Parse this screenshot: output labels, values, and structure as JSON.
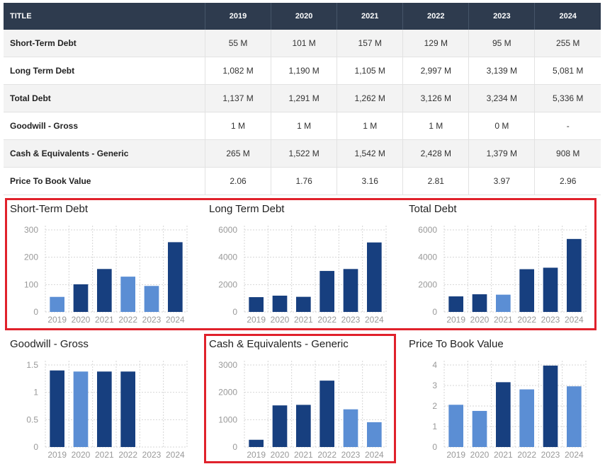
{
  "table": {
    "header": [
      "TITLE",
      "2019",
      "2020",
      "2021",
      "2022",
      "2023",
      "2024"
    ],
    "rows": [
      {
        "label": "Short-Term Debt",
        "values": [
          "55 M",
          "101 M",
          "157 M",
          "129 M",
          "95 M",
          "255 M"
        ]
      },
      {
        "label": "Long Term Debt",
        "values": [
          "1,082 M",
          "1,190 M",
          "1,105 M",
          "2,997 M",
          "3,139 M",
          "5,081 M"
        ]
      },
      {
        "label": "Total Debt",
        "values": [
          "1,137 M",
          "1,291 M",
          "1,262 M",
          "3,126 M",
          "3,234 M",
          "5,336 M"
        ]
      },
      {
        "label": "Goodwill - Gross",
        "values": [
          "1 M",
          "1 M",
          "1 M",
          "1 M",
          "0 M",
          "-"
        ]
      },
      {
        "label": "Cash & Equivalents - Generic",
        "values": [
          "265 M",
          "1,522 M",
          "1,542 M",
          "2,428 M",
          "1,379 M",
          "908 M"
        ]
      },
      {
        "label": "Price To Book Value",
        "values": [
          "2.06",
          "1.76",
          "3.16",
          "2.81",
          "3.97",
          "2.96"
        ]
      }
    ]
  },
  "colors": {
    "dark_bar": "#173f7f",
    "light_bar": "#5b8ed4",
    "highlight_border": "#e0212b",
    "header_bg": "#2e3b4e"
  },
  "chart_data": [
    {
      "type": "bar",
      "title": "Short-Term Debt",
      "categories": [
        "2019",
        "2020",
        "2021",
        "2022",
        "2023",
        "2024"
      ],
      "values": [
        55,
        101,
        157,
        129,
        95,
        255
      ],
      "colors": [
        "light",
        "dark",
        "dark",
        "light",
        "light",
        "dark"
      ],
      "yticks": [
        0,
        100,
        200,
        300
      ],
      "ylim": [
        0,
        300
      ],
      "grid": true,
      "highlighted": true
    },
    {
      "type": "bar",
      "title": "Long Term Debt",
      "categories": [
        "2019",
        "2020",
        "2021",
        "2022",
        "2023",
        "2024"
      ],
      "values": [
        1082,
        1190,
        1105,
        2997,
        3139,
        5081
      ],
      "colors": [
        "dark",
        "dark",
        "dark",
        "dark",
        "dark",
        "dark"
      ],
      "yticks": [
        0,
        2000,
        4000,
        6000
      ],
      "ylim": [
        0,
        6000
      ],
      "grid": true,
      "highlighted": true
    },
    {
      "type": "bar",
      "title": "Total Debt",
      "categories": [
        "2019",
        "2020",
        "2021",
        "2022",
        "2023",
        "2024"
      ],
      "values": [
        1137,
        1291,
        1262,
        3126,
        3234,
        5336
      ],
      "colors": [
        "dark",
        "dark",
        "light",
        "dark",
        "dark",
        "dark"
      ],
      "yticks": [
        0,
        2000,
        4000,
        6000
      ],
      "ylim": [
        0,
        6000
      ],
      "grid": true,
      "highlighted": true
    },
    {
      "type": "bar",
      "title": "Goodwill - Gross",
      "categories": [
        "2019",
        "2020",
        "2021",
        "2022",
        "2023",
        "2024"
      ],
      "values": [
        1.4,
        1.38,
        1.38,
        1.38,
        0,
        0
      ],
      "colors": [
        "dark",
        "light",
        "dark",
        "dark",
        "dark",
        "dark"
      ],
      "yticks": [
        0,
        0.5,
        1,
        1.5
      ],
      "ylim": [
        0,
        1.5
      ],
      "grid": true,
      "highlighted": false
    },
    {
      "type": "bar",
      "title": "Cash & Equivalents - Generic",
      "categories": [
        "2019",
        "2020",
        "2021",
        "2022",
        "2023",
        "2024"
      ],
      "values": [
        265,
        1522,
        1542,
        2428,
        1379,
        908
      ],
      "colors": [
        "dark",
        "dark",
        "dark",
        "dark",
        "light",
        "light"
      ],
      "yticks": [
        0,
        1000,
        2000,
        3000
      ],
      "ylim": [
        0,
        3000
      ],
      "grid": true,
      "highlighted": true
    },
    {
      "type": "bar",
      "title": "Price To Book Value",
      "categories": [
        "2019",
        "2020",
        "2021",
        "2022",
        "2023",
        "2024"
      ],
      "values": [
        2.06,
        1.76,
        3.16,
        2.81,
        3.97,
        2.96
      ],
      "colors": [
        "light",
        "light",
        "dark",
        "light",
        "dark",
        "light"
      ],
      "yticks": [
        0,
        1,
        2,
        3,
        4
      ],
      "ylim": [
        0,
        4
      ],
      "grid": true,
      "highlighted": false
    }
  ]
}
